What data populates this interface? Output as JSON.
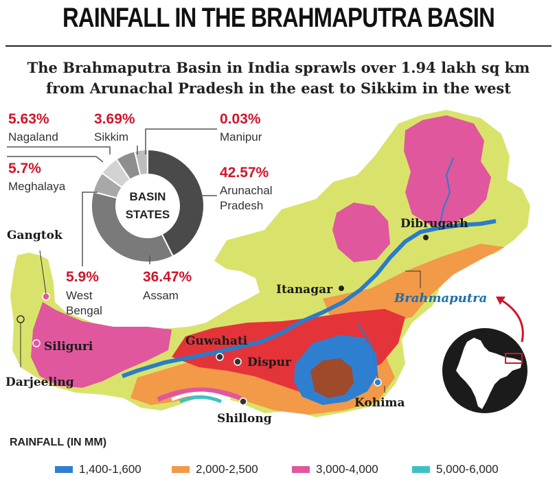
{
  "title": "RAINFALL IN THE BRAHMAPUTRA BASIN",
  "subtitle_line1": "The Brahmaputra Basin in India sprawls over 1.94 lakh sq km",
  "subtitle_line2": "from Arunachal Pradesh in the east to Sikkim in the west",
  "donut": {
    "center_line1": "BASIN",
    "center_line2": "STATES",
    "slices": [
      {
        "state": "Arunachal Pradesh",
        "pct_label": "42.57%",
        "value": 42.57,
        "color": "#4a4a4a"
      },
      {
        "state": "Assam",
        "pct_label": "36.47%",
        "value": 36.47,
        "color": "#7a7a7a"
      },
      {
        "state": "West Bengal",
        "pct_label": "5.9%",
        "value": 5.9,
        "color": "#a8a8a8"
      },
      {
        "state": "Meghalaya",
        "pct_label": "5.7%",
        "value": 5.7,
        "color": "#d2d2d2"
      },
      {
        "state": "Nagaland",
        "pct_label": "5.63%",
        "value": 5.63,
        "color": "#8e8e8e"
      },
      {
        "state": "Sikkim",
        "pct_label": "3.69%",
        "value": 3.69,
        "color": "#bdbdbd"
      },
      {
        "state": "Manipur",
        "pct_label": "0.03%",
        "value": 0.03,
        "color": "#e0e0e0"
      }
    ]
  },
  "labels": {
    "nagaland_pct": "5.63%",
    "nagaland": "Nagaland",
    "sikkim_pct": "3.69%",
    "sikkim": "Sikkim",
    "manipur_pct": "0.03%",
    "manipur": "Manipur",
    "meghalaya_pct": "5.7%",
    "meghalaya": "Meghalaya",
    "arunachal_pct": "42.57%",
    "arunachal_1": "Arunachal",
    "arunachal_2": "Pradesh",
    "westbengal_pct": "5.9%",
    "westbengal_1": "West",
    "westbengal_2": "Bengal",
    "assam_pct": "36.47%",
    "assam": "Assam"
  },
  "places": {
    "gangtok": "Gangtok",
    "darjeeling": "Darjeeling",
    "siliguri": "Siliguri",
    "guwahati": "Guwahati",
    "dispur": "Dispur",
    "itanagar": "Itanagar",
    "dibrugarh": "Dibrugarh",
    "kohima": "Kohima",
    "shillong": "Shillong",
    "river": "Brahmaputra"
  },
  "legend": {
    "title": "RAINFALL (IN MM)",
    "items": [
      {
        "label": "1,400-1,600",
        "color": "#2f7fd0"
      },
      {
        "label": "2,000-2,500",
        "color": "#f29a48"
      },
      {
        "label": "3,000-4,000",
        "color": "#e0579d"
      },
      {
        "label": "5,000-6,000",
        "color": "#3fc1c4"
      }
    ]
  },
  "zone_colors": {
    "base": "#d9e36b",
    "orange": "#f29a48",
    "red": "#e5333a",
    "pink": "#e0579d",
    "blue": "#2f7fd0",
    "brown": "#a04a2c",
    "teal": "#3fc1c4",
    "river": "#2a7cc8"
  }
}
